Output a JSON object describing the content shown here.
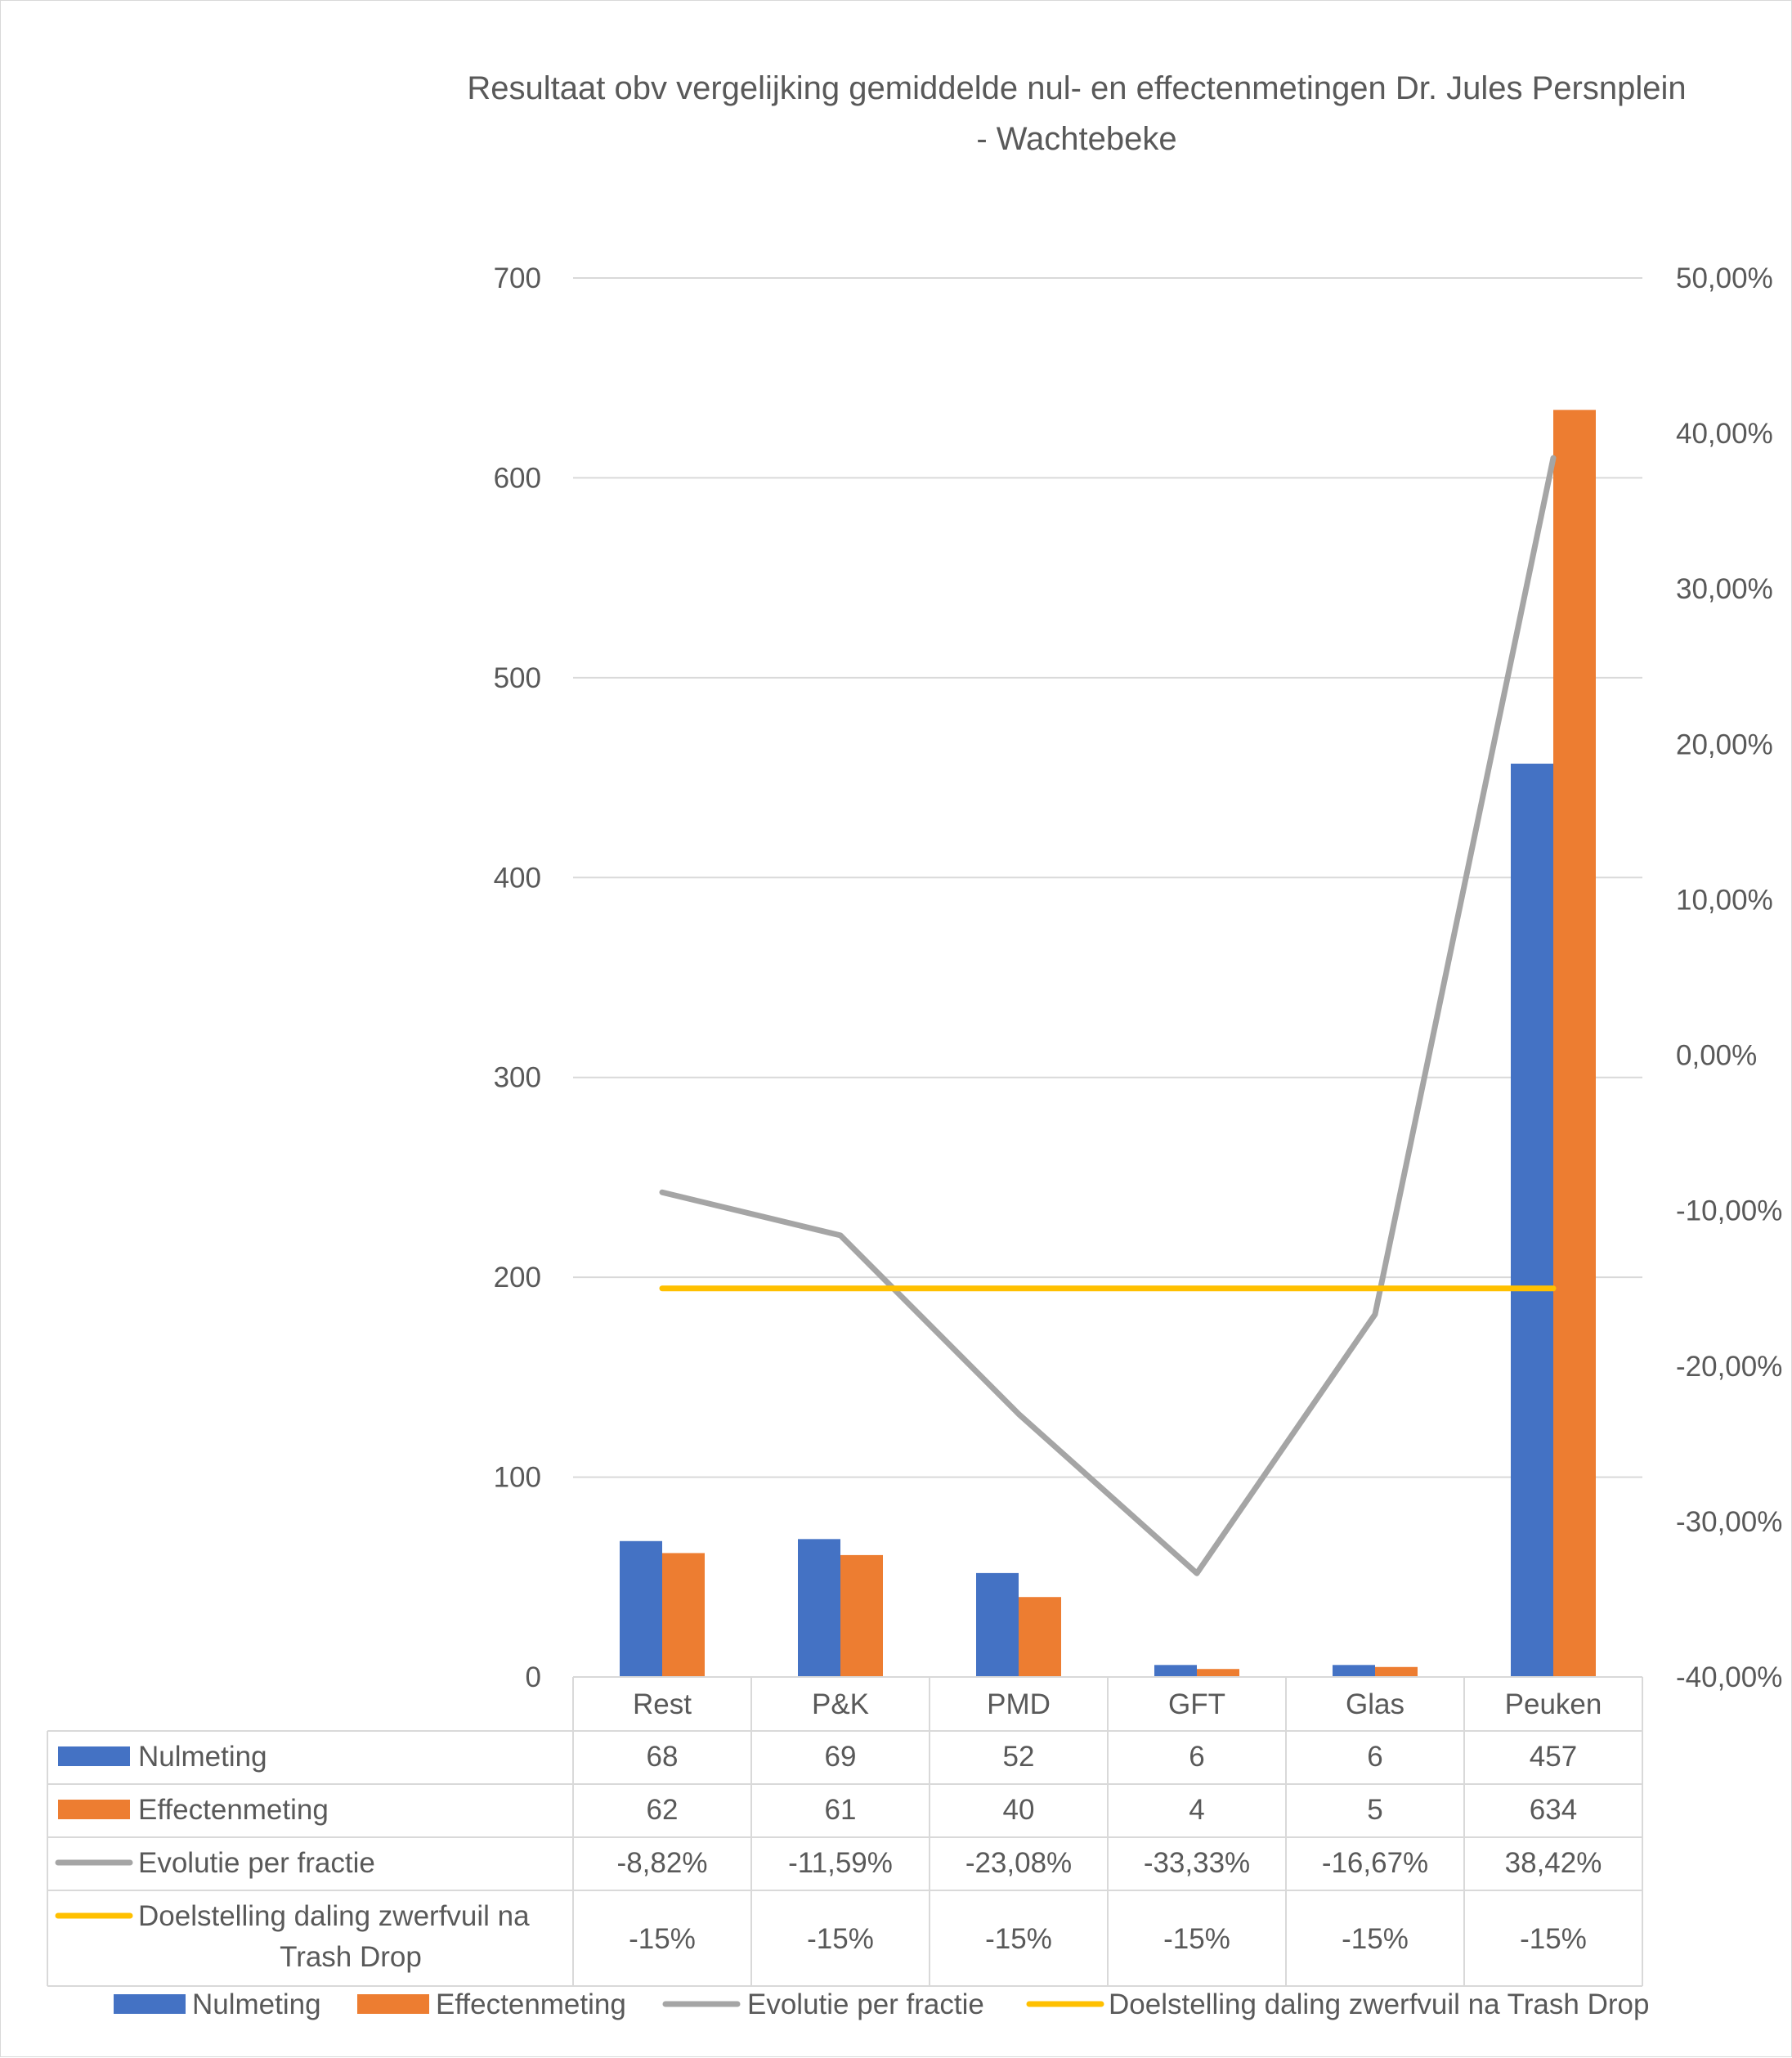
{
  "chart_data": {
    "type": "bar",
    "title": "Resultaat obv vergelijking gemiddelde nul- en effectenmetingen Dr. Jules Persnplein",
    "title_line2": "-  Wachtebeke",
    "categories": [
      "Rest",
      "P&K",
      "PMD",
      "GFT",
      "Glas",
      "Peuken"
    ],
    "ylim": [
      0,
      700
    ],
    "y_ticks": [
      "0",
      "100",
      "200",
      "300",
      "400",
      "500",
      "600",
      "700"
    ],
    "y2lim": [
      -40,
      50
    ],
    "y2_ticks": [
      "-40,00%",
      "-30,00%",
      "-20,00%",
      "-10,00%",
      "0,00%",
      "10,00%",
      "20,00%",
      "30,00%",
      "40,00%",
      "50,00%"
    ],
    "grid": true,
    "legend_position": "bottom",
    "series": [
      {
        "name": "Nulmeting",
        "kind": "bar",
        "axis": "left",
        "color": "#4472C4",
        "values": [
          68,
          69,
          52,
          6,
          6,
          457
        ],
        "labels": [
          "68",
          "69",
          "52",
          "6",
          "6",
          "457"
        ]
      },
      {
        "name": "Effectenmeting",
        "kind": "bar",
        "axis": "left",
        "color": "#ED7D31",
        "values": [
          62,
          61,
          40,
          4,
          5,
          634
        ],
        "labels": [
          "62",
          "61",
          "40",
          "4",
          "5",
          "634"
        ]
      },
      {
        "name": "Evolutie per fractie",
        "kind": "line",
        "axis": "right",
        "color": "#A5A5A5",
        "values": [
          -8.82,
          -11.59,
          -23.08,
          -33.33,
          -16.67,
          38.42
        ],
        "labels": [
          "-8,82%",
          "-11,59%",
          "-23,08%",
          "-33,33%",
          "-16,67%",
          "38,42%"
        ]
      },
      {
        "name": "Doelstelling daling zwerfvuil na Trash Drop",
        "kind": "line",
        "axis": "right",
        "color": "#FFC000",
        "values": [
          -15,
          -15,
          -15,
          -15,
          -15,
          -15
        ],
        "labels": [
          "-15%",
          "-15%",
          "-15%",
          "-15%",
          "-15%",
          "-15%"
        ]
      }
    ],
    "table_row_names": [
      "Nulmeting",
      "Effectenmeting",
      "Evolutie per fractie",
      "Doelstelling daling zwerfvuil na",
      "Trash Drop"
    ]
  }
}
